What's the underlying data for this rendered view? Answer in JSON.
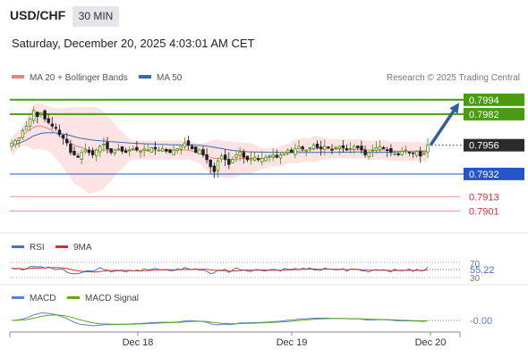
{
  "header": {
    "symbol": "USD/CHF",
    "timeframe": "30 MIN",
    "datetime": "Saturday, December 20, 2025 4:03:01 AM CET"
  },
  "legend": {
    "ma20": "MA 20 + Bollinger Bands",
    "ma50": "MA 50",
    "credit": "Research © 2025 Trading Central"
  },
  "colors": {
    "ma20": "#f08080",
    "ma50": "#3a6ab0",
    "bands": "#fde3e3",
    "green": "#4a9a12",
    "blue": "#2555c9",
    "red": "#ef9a9a",
    "arrow": "#2f5f9e",
    "dark": "#2b2b2b",
    "rsi": "#4472c4",
    "rsi_ma": "#d32f2f",
    "macd": "#5b7fd6",
    "macd_signal": "#5ea81a"
  },
  "chart_data": [
    {
      "type": "candlestick",
      "name": "price",
      "ylim": [
        0.7885,
        0.8005
      ],
      "current": {
        "label": "0.7956",
        "value": 0.7956
      },
      "levels": [
        {
          "label": "0.7994",
          "value": 0.7994,
          "kind": "green"
        },
        {
          "label": "0.7982",
          "value": 0.7982,
          "kind": "green"
        },
        {
          "label": "0.7932",
          "value": 0.7932,
          "kind": "blue"
        },
        {
          "label": "0.7913",
          "value": 0.7913,
          "kind": "red"
        },
        {
          "label": "0.7901",
          "value": 0.7901,
          "kind": "red"
        }
      ],
      "forecast": {
        "from": 0.7956,
        "to": 0.7994
      },
      "close": [
        0.7958,
        0.796,
        0.7962,
        0.7968,
        0.7972,
        0.7978,
        0.7985,
        0.798,
        0.7983,
        0.7978,
        0.7975,
        0.7972,
        0.797,
        0.7965,
        0.7962,
        0.7958,
        0.795,
        0.7948,
        0.7946,
        0.795,
        0.7952,
        0.795,
        0.7948,
        0.7952,
        0.7955,
        0.7957,
        0.7953,
        0.795,
        0.7952,
        0.7953,
        0.7951,
        0.795,
        0.7952,
        0.7953,
        0.7952,
        0.7951,
        0.7953,
        0.7952,
        0.7954,
        0.7953,
        0.7952,
        0.7953,
        0.7951,
        0.795,
        0.7952,
        0.7953,
        0.7955,
        0.7958,
        0.7956,
        0.7953,
        0.795,
        0.7952,
        0.7948,
        0.7944,
        0.7938,
        0.7934,
        0.7943,
        0.7947,
        0.7944,
        0.794,
        0.7944,
        0.7948,
        0.795,
        0.7946,
        0.7944,
        0.7945,
        0.7946,
        0.7944,
        0.7945,
        0.7946,
        0.7947,
        0.7948,
        0.7946,
        0.7948,
        0.795,
        0.7952,
        0.795,
        0.7953,
        0.7955,
        0.7953,
        0.7952,
        0.7954,
        0.7956,
        0.7954,
        0.7953,
        0.7955,
        0.7954,
        0.7952,
        0.7954,
        0.7955,
        0.7954,
        0.7952,
        0.7953,
        0.7955,
        0.7954,
        0.7952,
        0.7948,
        0.795,
        0.7952,
        0.7954,
        0.7955,
        0.7953,
        0.7952,
        0.795,
        0.7949,
        0.7948,
        0.7951,
        0.7952,
        0.795,
        0.7949,
        0.7951,
        0.7947,
        0.7949,
        0.7956
      ],
      "ma20": [
        0.7955,
        0.7958,
        0.7961,
        0.7964,
        0.7967,
        0.7969,
        0.7971,
        0.7972,
        0.7972,
        0.7971,
        0.797,
        0.7968,
        0.7966,
        0.7964,
        0.7962,
        0.796,
        0.7958,
        0.7956,
        0.7955,
        0.7954,
        0.7953,
        0.7952,
        0.7952,
        0.7952,
        0.7952,
        0.7952,
        0.7952,
        0.7952,
        0.7952,
        0.7952,
        0.7952,
        0.7952,
        0.7952,
        0.7952,
        0.7952,
        0.7952,
        0.7952,
        0.7952,
        0.7952,
        0.7952,
        0.7952,
        0.7952,
        0.7952,
        0.7952,
        0.7952,
        0.7952,
        0.7952,
        0.7952,
        0.7952,
        0.7951,
        0.795,
        0.7949,
        0.7948,
        0.7947,
        0.7946,
        0.7945,
        0.7945,
        0.7945,
        0.7944,
        0.7944,
        0.7944,
        0.7944,
        0.7945,
        0.7945,
        0.7945,
        0.7945,
        0.7945,
        0.7945,
        0.7945,
        0.7945,
        0.7946,
        0.7946,
        0.7946,
        0.7947,
        0.7948,
        0.7949,
        0.795,
        0.7951,
        0.7951,
        0.7952,
        0.7952,
        0.7952,
        0.7953,
        0.7953,
        0.7953,
        0.7953,
        0.7953,
        0.7953,
        0.7953,
        0.7953,
        0.7953,
        0.7953,
        0.7953,
        0.7953,
        0.7953,
        0.7953,
        0.7952,
        0.7952,
        0.7952,
        0.7952,
        0.7952,
        0.7952,
        0.7952,
        0.7951,
        0.7951,
        0.7951,
        0.7951,
        0.7951,
        0.7951,
        0.7951,
        0.7951,
        0.7951,
        0.795,
        0.7951
      ]
    },
    {
      "type": "line",
      "name": "RSI",
      "legend": [
        "RSI",
        "9MA"
      ],
      "ticks": [
        "70",
        "30"
      ],
      "current_label": "55.22"
    },
    {
      "type": "line",
      "name": "MACD",
      "legend": [
        "MACD",
        "MACD Signal"
      ],
      "current_label": "-0.00"
    }
  ],
  "xaxis": {
    "ticks": [
      "Dec 18",
      "Dec 19",
      "Dec 20"
    ]
  }
}
